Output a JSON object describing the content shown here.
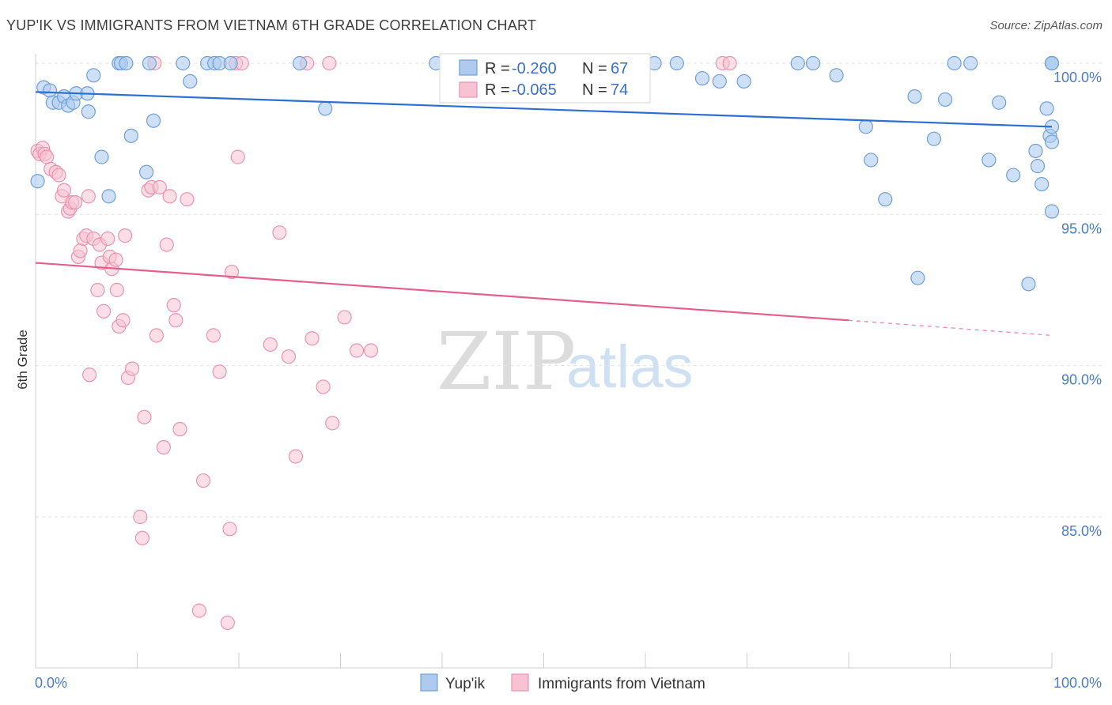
{
  "title": "YUP'IK VS IMMIGRANTS FROM VIETNAM 6TH GRADE CORRELATION CHART",
  "source": "Source: ZipAtlas.com",
  "watermark": {
    "zip": "ZIP",
    "atlas": "atlas"
  },
  "legend_box": {
    "rows": [
      {
        "r_label": "R =",
        "r_value": "-0.260",
        "n_label": "N =",
        "n_value": "67"
      },
      {
        "r_label": "R =",
        "r_value": "-0.065",
        "n_label": "N =",
        "n_value": "74"
      }
    ]
  },
  "colors": {
    "yupik_fill": "#aecbef",
    "yupik_stroke": "#6f9fd8",
    "yupik_line": "#2c6fd0",
    "viet_fill": "#f7c3d2",
    "viet_stroke": "#e894b0",
    "viet_line": "#e4608c",
    "grid": "#e2e2e2",
    "tick_text": "#4a7cc9"
  },
  "chart_data": {
    "type": "scatter",
    "title": "YUP'IK VS IMMIGRANTS FROM VIETNAM 6TH GRADE CORRELATION CHART",
    "xlabel": "",
    "ylabel": "6th Grade",
    "xlim": [
      0,
      100
    ],
    "ylim": [
      80.5,
      100.5
    ],
    "x_tick_labels": [
      "0.0%",
      "100.0%"
    ],
    "y_ticks": [
      100,
      95,
      90,
      85
    ],
    "y_tick_labels": [
      "100.0%",
      "95.0%",
      "90.0%",
      "85.0%"
    ],
    "grid": true,
    "legend_position": "bottom-center",
    "series": [
      {
        "name": "Yup'ik",
        "r": -0.26,
        "n": 67,
        "trend": {
          "x": [
            0,
            100
          ],
          "y": [
            99.05,
            97.9
          ]
        },
        "points": [
          [
            0.2,
            96.1
          ],
          [
            0.8,
            99.2
          ],
          [
            1.4,
            99.1
          ],
          [
            1.7,
            98.7
          ],
          [
            2.3,
            98.7
          ],
          [
            2.8,
            98.9
          ],
          [
            3.2,
            98.6
          ],
          [
            3.7,
            98.7
          ],
          [
            4.0,
            99.0
          ],
          [
            5.1,
            99.0
          ],
          [
            5.2,
            98.4
          ],
          [
            5.7,
            99.6
          ],
          [
            6.5,
            96.9
          ],
          [
            7.2,
            95.6
          ],
          [
            8.2,
            100.0
          ],
          [
            8.4,
            100.0
          ],
          [
            8.9,
            100.0
          ],
          [
            9.4,
            97.6
          ],
          [
            10.9,
            96.4
          ],
          [
            11.2,
            100.0
          ],
          [
            11.6,
            98.1
          ],
          [
            14.5,
            100.0
          ],
          [
            15.2,
            99.4
          ],
          [
            16.9,
            100.0
          ],
          [
            17.6,
            100.0
          ],
          [
            18.1,
            100.0
          ],
          [
            19.2,
            100.0
          ],
          [
            26.0,
            100.0
          ],
          [
            28.5,
            98.5
          ],
          [
            39.4,
            100.0
          ],
          [
            43.7,
            100.0
          ],
          [
            46.4,
            100.0
          ],
          [
            51.7,
            100.0
          ],
          [
            53.0,
            100.0
          ],
          [
            57.7,
            100.0
          ],
          [
            60.9,
            100.0
          ],
          [
            63.1,
            100.0
          ],
          [
            65.6,
            99.5
          ],
          [
            67.3,
            99.4
          ],
          [
            69.7,
            99.4
          ],
          [
            75.0,
            100.0
          ],
          [
            76.5,
            100.0
          ],
          [
            78.8,
            99.6
          ],
          [
            81.7,
            97.9
          ],
          [
            82.2,
            96.8
          ],
          [
            83.6,
            95.5
          ],
          [
            86.5,
            98.9
          ],
          [
            86.8,
            92.9
          ],
          [
            88.4,
            97.5
          ],
          [
            89.5,
            98.8
          ],
          [
            90.4,
            100.0
          ],
          [
            92.0,
            100.0
          ],
          [
            93.8,
            96.8
          ],
          [
            94.8,
            98.7
          ],
          [
            96.2,
            96.3
          ],
          [
            97.7,
            92.7
          ],
          [
            98.4,
            97.1
          ],
          [
            98.6,
            96.6
          ],
          [
            99.0,
            96.0
          ],
          [
            99.5,
            98.5
          ],
          [
            99.8,
            97.6
          ],
          [
            100.0,
            95.1
          ],
          [
            100.0,
            100.0
          ],
          [
            100.0,
            100.0
          ],
          [
            100.0,
            97.9
          ],
          [
            100.0,
            100.0
          ],
          [
            100.0,
            97.4
          ]
        ]
      },
      {
        "name": "Immigrants from Vietnam",
        "r": -0.065,
        "n": 74,
        "trend": {
          "x": [
            0,
            80
          ],
          "y": [
            93.4,
            91.5
          ]
        },
        "trend_dashed": {
          "x": [
            80,
            100
          ],
          "y": [
            91.5,
            91.0
          ]
        },
        "points": [
          [
            0.2,
            97.1
          ],
          [
            0.4,
            97.0
          ],
          [
            0.7,
            97.2
          ],
          [
            0.9,
            97.0
          ],
          [
            1.1,
            96.9
          ],
          [
            1.5,
            96.5
          ],
          [
            2.0,
            96.4
          ],
          [
            2.3,
            96.3
          ],
          [
            2.6,
            95.6
          ],
          [
            2.8,
            95.8
          ],
          [
            3.2,
            95.1
          ],
          [
            3.4,
            95.2
          ],
          [
            3.6,
            95.4
          ],
          [
            3.9,
            95.4
          ],
          [
            4.2,
            93.6
          ],
          [
            4.4,
            93.8
          ],
          [
            4.7,
            94.2
          ],
          [
            5.0,
            94.3
          ],
          [
            5.2,
            95.6
          ],
          [
            5.3,
            89.7
          ],
          [
            5.7,
            94.2
          ],
          [
            6.1,
            92.5
          ],
          [
            6.3,
            94.0
          ],
          [
            6.5,
            93.4
          ],
          [
            6.7,
            91.8
          ],
          [
            7.1,
            94.2
          ],
          [
            7.3,
            93.6
          ],
          [
            7.5,
            93.2
          ],
          [
            7.9,
            93.5
          ],
          [
            8.0,
            92.5
          ],
          [
            8.2,
            91.3
          ],
          [
            8.6,
            91.5
          ],
          [
            8.8,
            94.3
          ],
          [
            9.1,
            89.6
          ],
          [
            9.5,
            89.9
          ],
          [
            10.3,
            85.0
          ],
          [
            10.5,
            84.3
          ],
          [
            10.7,
            88.3
          ],
          [
            11.1,
            95.8
          ],
          [
            11.4,
            95.9
          ],
          [
            11.7,
            100.0
          ],
          [
            11.9,
            91.0
          ],
          [
            12.2,
            95.9
          ],
          [
            12.6,
            87.3
          ],
          [
            12.9,
            94.0
          ],
          [
            13.2,
            95.6
          ],
          [
            13.6,
            92.0
          ],
          [
            13.8,
            91.5
          ],
          [
            14.2,
            87.9
          ],
          [
            14.9,
            95.5
          ],
          [
            16.1,
            81.9
          ],
          [
            16.5,
            86.2
          ],
          [
            17.5,
            91.0
          ],
          [
            18.1,
            89.8
          ],
          [
            18.9,
            81.5
          ],
          [
            19.1,
            84.6
          ],
          [
            19.3,
            93.1
          ],
          [
            19.7,
            100.0
          ],
          [
            19.9,
            96.9
          ],
          [
            20.3,
            100.0
          ],
          [
            23.1,
            90.7
          ],
          [
            24.0,
            94.4
          ],
          [
            24.9,
            90.3
          ],
          [
            25.6,
            87.0
          ],
          [
            26.7,
            100.0
          ],
          [
            27.2,
            90.9
          ],
          [
            28.3,
            89.3
          ],
          [
            28.9,
            100.0
          ],
          [
            29.2,
            88.1
          ],
          [
            30.4,
            91.6
          ],
          [
            31.6,
            90.5
          ],
          [
            33.0,
            90.5
          ],
          [
            67.6,
            100.0
          ],
          [
            68.3,
            100.0
          ]
        ]
      }
    ]
  }
}
